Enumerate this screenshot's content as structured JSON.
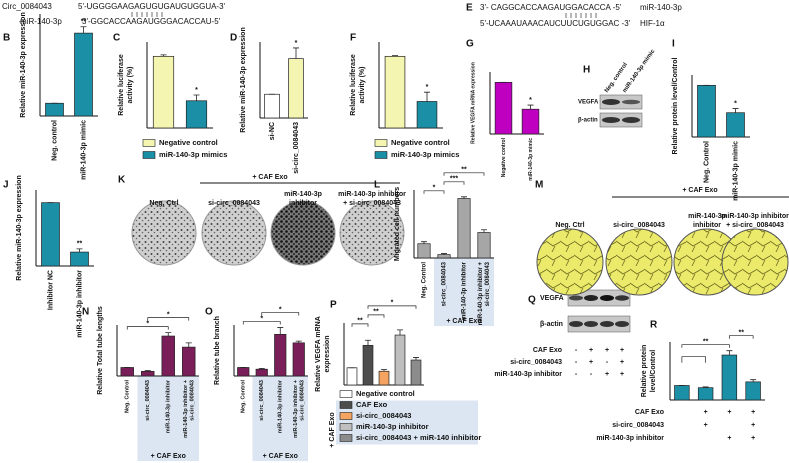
{
  "sequences": [
    {
      "rows": [
        {
          "name": "Circ_0084043",
          "sequence": "5'-UGGGGAAGAGUGUGAUGUGGUA-3'"
        },
        {
          "name": "miR-140-3p",
          "sequence": "3'-GGCACCAAGAUGGGACACCAU-5'"
        }
      ]
    },
    {
      "panel": "E",
      "rows": [
        {
          "sequence": "3'- CAGGCACCAAGAUGGACACCA -5'",
          "name": "miR-140-3p"
        },
        {
          "sequence": "5'-UCAAAUAAACAUCUUCUGUGGAC -3'",
          "name": "HIF-1α"
        }
      ]
    }
  ],
  "blots": [
    {
      "panel": "H",
      "columns": [
        "Neg. control",
        "miR-140-3p mimic"
      ],
      "rows": [
        "VEGFA",
        "β-actin"
      ]
    },
    {
      "panel": "Q",
      "rows": [
        "VEGFA",
        "β-actin"
      ],
      "conditions": [
        {
          "label": "CAF Exo",
          "marks": [
            "-",
            "+",
            "+",
            "+"
          ]
        },
        {
          "label": "si-circ_0084043",
          "marks": [
            "-",
            "+",
            "-",
            "+"
          ]
        },
        {
          "label": "miR-140-3p inhibitor",
          "marks": [
            "-",
            "-",
            "+",
            "+"
          ]
        }
      ]
    }
  ],
  "images": [
    {
      "panel": "K",
      "header": "+ CAF Exo",
      "labels": [
        [
          "Neg. Ctrl"
        ],
        [
          "si-circ_0084043"
        ],
        [
          "miR-140-3p",
          "inhibitor"
        ],
        [
          "miR-140-3p inhibitor",
          "+ si-circ_0084043"
        ]
      ]
    },
    {
      "panel": "M",
      "header": "+ CAF Exo",
      "labels": [
        [
          "Neg. Ctrl"
        ],
        [
          "si-circ_0084043"
        ],
        [
          "miR-140-3p",
          "inhibitor"
        ],
        [
          "miR-140-3p inhibitor",
          "+ si-circ_0084043"
        ]
      ]
    }
  ],
  "chart_data": [
    {
      "type": "bar",
      "panel": "B",
      "ylabel": "Relative miR-140-3p expression",
      "categories": [
        "Neg. control",
        "miR-140-3p mimic"
      ],
      "values": [
        1,
        6.5
      ],
      "errors": [
        0,
        0.5
      ],
      "colors": [
        "#1b8fa6",
        "#1b8fa6"
      ],
      "ylim": [
        0,
        8
      ],
      "annotations": [
        "**"
      ]
    },
    {
      "type": "bar",
      "panel": "C",
      "ylabel": [
        "Relative luciferase",
        "activity (%)"
      ],
      "legend": [
        "Negative control",
        "miR-140-3p mimics"
      ],
      "values": [
        100,
        38
      ],
      "errors": [
        2,
        8
      ],
      "colors": [
        "#f3f5b0",
        "#1b8fa6"
      ],
      "ylim": [
        0,
        120
      ],
      "annotations": [
        "*"
      ]
    },
    {
      "type": "bar",
      "panel": "D",
      "ylabel": "Relative miR-140-3p expression",
      "categories": [
        "si-NC",
        "si-circ_0084043"
      ],
      "values": [
        1,
        2.5
      ],
      "errors": [
        0,
        0.45
      ],
      "colors": [
        "#ffffff",
        "#f3f5b0"
      ],
      "ylim": [
        0,
        3.2
      ],
      "annotations": [
        "*"
      ]
    },
    {
      "type": "bar",
      "panel": "F",
      "ylabel": [
        "Relative luciferase",
        "activity (%)"
      ],
      "legend": [
        "Negative control",
        "miR-140-3p mimics"
      ],
      "values": [
        100,
        37
      ],
      "errors": [
        1,
        13
      ],
      "colors": [
        "#f3f5b0",
        "#1b8fa6"
      ],
      "ylim": [
        0,
        120
      ],
      "annotations": [
        "*"
      ]
    },
    {
      "type": "bar",
      "panel": "G",
      "ylabel": "Relative VEGFA mRNA expression",
      "categories": [
        "Negative control",
        "miR-140-3p mimic"
      ],
      "values": [
        1,
        0.48
      ],
      "errors": [
        0,
        0.08
      ],
      "colors": [
        "#c000c0",
        "#c000c0"
      ],
      "ylim": [
        0,
        1.2
      ],
      "annotations": [
        "*"
      ]
    },
    {
      "type": "bar",
      "panel": "I",
      "ylabel": "Relative protein level/Control",
      "categories": [
        "Neg. Control",
        "miR-140-3p mimic"
      ],
      "values": [
        1,
        0.47
      ],
      "errors": [
        0,
        0.08
      ],
      "colors": [
        "#1b8fa6",
        "#1b8fa6"
      ],
      "ylim": [
        0,
        1.2
      ],
      "annotations": [
        "*"
      ]
    },
    {
      "type": "bar",
      "panel": "J",
      "ylabel": "Relative miR-140-3p expression",
      "categories": [
        "Inhibitor NC",
        "miR-140-3p inhibitor"
      ],
      "values": [
        1,
        0.22
      ],
      "errors": [
        0,
        0.05
      ],
      "colors": [
        "#1b8fa6",
        "#1b8fa6"
      ],
      "ylim": [
        0,
        1.2
      ],
      "annotations": [
        "**"
      ]
    },
    {
      "type": "bar",
      "panel": "L",
      "ylabel": "Migrated cell numbers",
      "categories": [
        "Neg. Control",
        "si-circ_0084043",
        "miR-140-3p inhibitor",
        [
          "miR-140-3p inhibitor +",
          "si-circ_0084043"
        ]
      ],
      "values": [
        42,
        10,
        175,
        75
      ],
      "errors": [
        6,
        3,
        5,
        8
      ],
      "colors": [
        "#a6a6a6",
        "#a6a6a6",
        "#a6a6a6",
        "#a6a6a6"
      ],
      "ylim": [
        0,
        200
      ],
      "annotations": [
        "*",
        "***",
        "**"
      ],
      "group_label": "+ CAF Exo"
    },
    {
      "type": "bar",
      "panel": "N",
      "ylabel": "Relative Total tube lengths",
      "categories": [
        "Neg. Control",
        "si-circ_0084043",
        "miR-140-3p inhibitor",
        [
          "miR-140-3p inhibitor +",
          "si-circ_0084043"
        ]
      ],
      "values": [
        1,
        0.55,
        4.7,
        3.4
      ],
      "errors": [
        0,
        0.1,
        0.4,
        0.5
      ],
      "colors": [
        "#7a1e5a",
        "#7a1e5a",
        "#7a1e5a",
        "#7a1e5a"
      ],
      "ylim": [
        0,
        6
      ],
      "annotations": [
        "*",
        "*"
      ],
      "group_label": "+ CAF Exo"
    },
    {
      "type": "bar",
      "panel": "O",
      "ylabel": "Relative tube branch",
      "categories": [
        "Neg. Control",
        "si-circ_0084043",
        "miR-140-3p inhibitor",
        [
          "miR-140-3p inhibitor +",
          "si-circ_0084043"
        ]
      ],
      "values": [
        1,
        0.8,
        4.9,
        3.9
      ],
      "errors": [
        0,
        0.1,
        0.8,
        0.2
      ],
      "colors": [
        "#7a1e5a",
        "#7a1e5a",
        "#7a1e5a",
        "#7a1e5a"
      ],
      "ylim": [
        0,
        6
      ],
      "annotations": [
        "*",
        "*"
      ],
      "group_label": "+ CAF Exo"
    },
    {
      "type": "bar",
      "panel": "P",
      "ylabel": [
        "Relative VEGFA mRNA",
        "expression"
      ],
      "legend": [
        "Negative control",
        "CAF Exo",
        "si-circ_0084043",
        "miR-140-3p inhibitor",
        "si-circ_0084043 + miR-140 inhibitor"
      ],
      "values": [
        1,
        2.3,
        0.8,
        2.9,
        1.45
      ],
      "errors": [
        0,
        0.3,
        0.1,
        0.3,
        0.15
      ],
      "colors": [
        "#ffffff",
        "#4d4d4d",
        "#f4a460",
        "#bfbfbf",
        "#8c8c8c"
      ],
      "ylim": [
        0,
        3.6
      ],
      "annotations": [
        "**",
        "**",
        "*"
      ],
      "side_label": "+ CAF Exo"
    },
    {
      "type": "bar",
      "panel": "R",
      "ylabel": [
        "Relative protein",
        "level/Control"
      ],
      "values": [
        1,
        0.85,
        3.1,
        1.25
      ],
      "errors": [
        0,
        0.05,
        0.3,
        0.15
      ],
      "colors": [
        "#1b8fa6",
        "#1b8fa6",
        "#1b8fa6",
        "#1b8fa6"
      ],
      "ylim": [
        0,
        4
      ],
      "annotations": [
        "**",
        "**"
      ],
      "conditions": [
        {
          "label": "CAF Exo",
          "marks": [
            null,
            "+",
            "+",
            "+"
          ]
        },
        {
          "label": "si-circ_0084043",
          "marks": [
            null,
            "+",
            null,
            "+"
          ]
        },
        {
          "label": "miR-140-3p inhibitor",
          "marks": [
            null,
            null,
            "+",
            "+"
          ]
        }
      ]
    }
  ]
}
